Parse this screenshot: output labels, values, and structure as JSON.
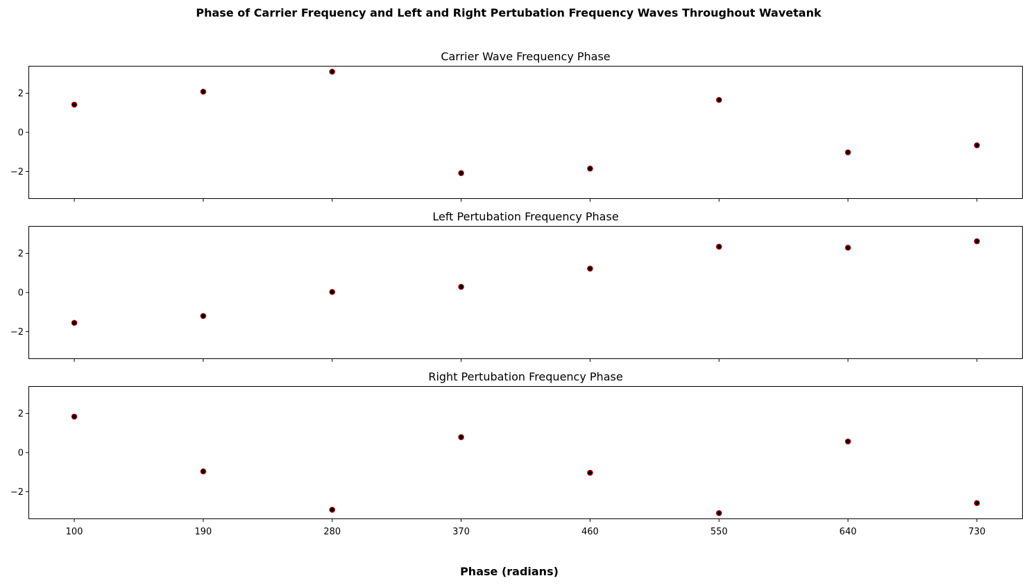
{
  "figure": {
    "suptitle": "Phase of Carrier Frequency and Left and Right Pertubation Frequency Waves Throughout Wavetank",
    "xlabel": "Phase (radians)"
  },
  "colors": {
    "marker_face": "#000000",
    "marker_edge": "#e00000",
    "axes": "#000000",
    "background": "#ffffff"
  },
  "chart_data": [
    {
      "type": "scatter",
      "title": "Carrier Wave Frequency Phase",
      "x": [
        100,
        190,
        280,
        370,
        460,
        550,
        640,
        730
      ],
      "y": [
        1.42,
        2.08,
        3.1,
        -2.08,
        -1.85,
        1.66,
        -1.02,
        -0.66
      ],
      "xlim": [
        68,
        762
      ],
      "ylim": [
        -3.4,
        3.4
      ],
      "xticks": [
        100,
        190,
        280,
        370,
        460,
        550,
        640,
        730
      ],
      "yticks": [
        -2,
        0,
        2
      ],
      "show_xtick_labels": false,
      "grid": false
    },
    {
      "type": "scatter",
      "title": "Left Pertubation Frequency Phase",
      "x": [
        100,
        190,
        280,
        370,
        460,
        550,
        640,
        730
      ],
      "y": [
        -1.55,
        -1.2,
        0.03,
        0.29,
        1.22,
        2.34,
        2.29,
        2.62
      ],
      "xlim": [
        68,
        762
      ],
      "ylim": [
        -3.4,
        3.4
      ],
      "xticks": [
        100,
        190,
        280,
        370,
        460,
        550,
        640,
        730
      ],
      "yticks": [
        -2,
        0,
        2
      ],
      "show_xtick_labels": false,
      "grid": false
    },
    {
      "type": "scatter",
      "title": "Right Pertubation Frequency Phase",
      "x": [
        100,
        190,
        280,
        370,
        460,
        550,
        640,
        730
      ],
      "y": [
        1.84,
        -0.96,
        -2.92,
        0.79,
        -1.03,
        -3.09,
        0.57,
        -2.58
      ],
      "xlim": [
        68,
        762
      ],
      "ylim": [
        -3.4,
        3.4
      ],
      "xticks": [
        100,
        190,
        280,
        370,
        460,
        550,
        640,
        730
      ],
      "yticks": [
        -2,
        0,
        2
      ],
      "show_xtick_labels": true,
      "grid": false
    }
  ]
}
